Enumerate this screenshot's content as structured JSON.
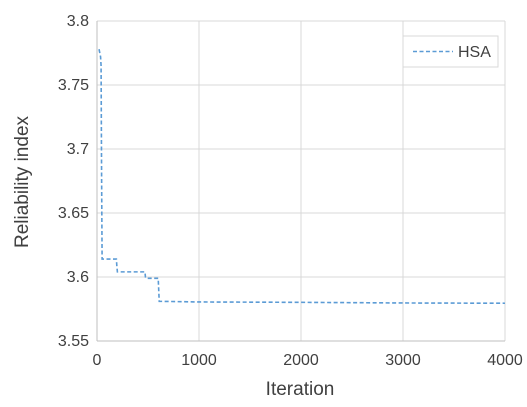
{
  "chart_data": {
    "type": "line",
    "title": "",
    "xlabel": "Iteration",
    "ylabel": "Reliability index",
    "xlim": [
      0,
      4000
    ],
    "ylim": [
      3.55,
      3.8
    ],
    "x_ticks": [
      0,
      1000,
      2000,
      3000,
      4000
    ],
    "x_tick_labels": [
      "0",
      "1000",
      "2000",
      "3000",
      "4000"
    ],
    "y_ticks": [
      3.55,
      3.6,
      3.65,
      3.7,
      3.75,
      3.8
    ],
    "y_tick_labels": [
      "3.55",
      "3.6",
      "3.65",
      "3.7",
      "3.75",
      "3.8"
    ],
    "grid": true,
    "legend_position": "top-right",
    "series": [
      {
        "name": "HSA",
        "color": "#5b9bd5",
        "line_style": "dashed",
        "x": [
          20,
          35,
          40,
          45,
          50,
          60,
          190,
          195,
          200,
          470,
          475,
          480,
          600,
          605,
          610,
          1000,
          2000,
          3000,
          4000
        ],
        "y": [
          3.778,
          3.772,
          3.765,
          3.68,
          3.614,
          3.614,
          3.614,
          3.608,
          3.604,
          3.604,
          3.6,
          3.599,
          3.599,
          3.59,
          3.581,
          3.5805,
          3.5802,
          3.5797,
          3.5795
        ]
      }
    ]
  }
}
